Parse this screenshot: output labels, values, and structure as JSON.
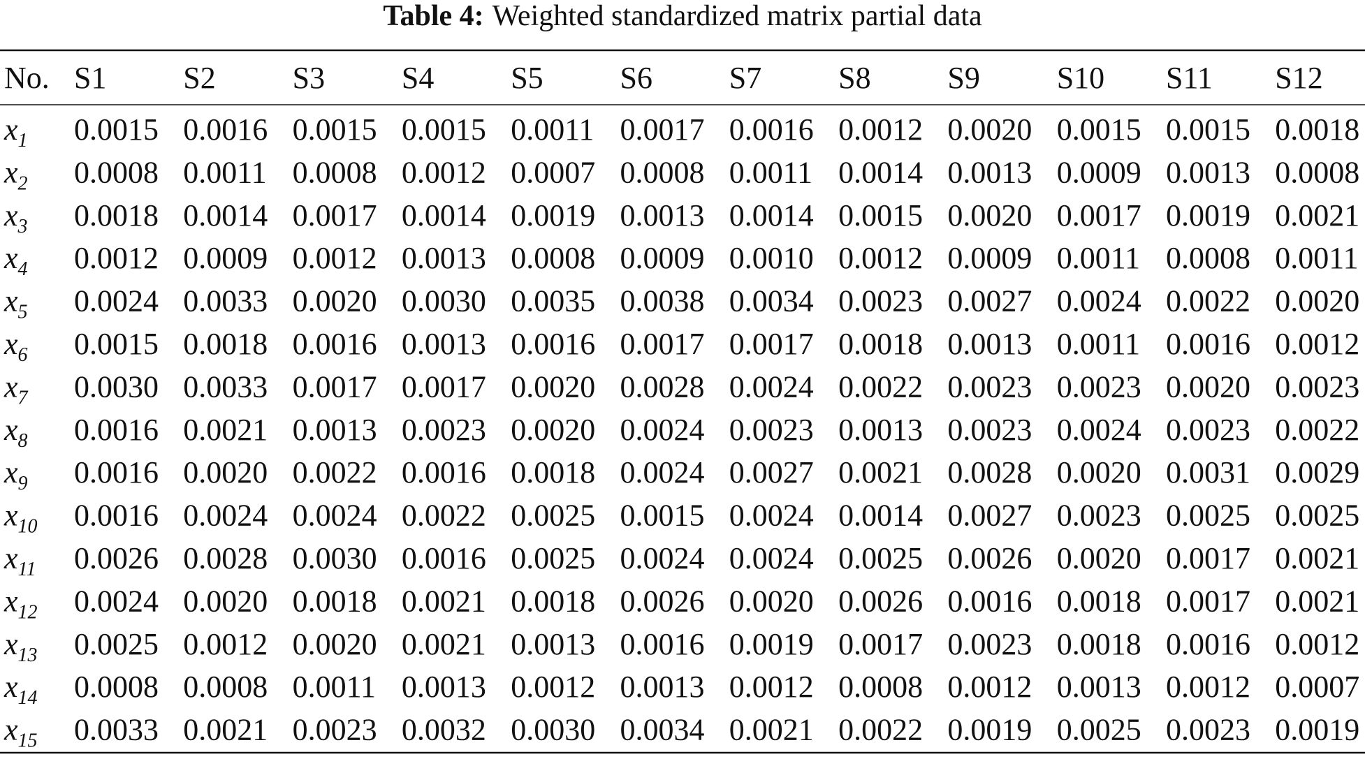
{
  "table": {
    "caption_label": "Table 4:",
    "caption_text": "Weighted standardized matrix partial data",
    "header": [
      "No.",
      "S1",
      "S2",
      "S3",
      "S4",
      "S5",
      "S6",
      "S7",
      "S8",
      "S9",
      "S10",
      "S11",
      "S12"
    ],
    "rows": [
      {
        "var": "x",
        "sub": "1",
        "cells": [
          "0.0015",
          "0.0016",
          "0.0015",
          "0.0015",
          "0.0011",
          "0.0017",
          "0.0016",
          "0.0012",
          "0.0020",
          "0.0015",
          "0.0015",
          "0.0018"
        ]
      },
      {
        "var": "x",
        "sub": "2",
        "cells": [
          "0.0008",
          "0.0011",
          "0.0008",
          "0.0012",
          "0.0007",
          "0.0008",
          "0.0011",
          "0.0014",
          "0.0013",
          "0.0009",
          "0.0013",
          "0.0008"
        ]
      },
      {
        "var": "x",
        "sub": "3",
        "cells": [
          "0.0018",
          "0.0014",
          "0.0017",
          "0.0014",
          "0.0019",
          "0.0013",
          "0.0014",
          "0.0015",
          "0.0020",
          "0.0017",
          "0.0019",
          "0.0021"
        ]
      },
      {
        "var": "x",
        "sub": "4",
        "cells": [
          "0.0012",
          "0.0009",
          "0.0012",
          "0.0013",
          "0.0008",
          "0.0009",
          "0.0010",
          "0.0012",
          "0.0009",
          "0.0011",
          "0.0008",
          "0.0011"
        ]
      },
      {
        "var": "x",
        "sub": "5",
        "cells": [
          "0.0024",
          "0.0033",
          "0.0020",
          "0.0030",
          "0.0035",
          "0.0038",
          "0.0034",
          "0.0023",
          "0.0027",
          "0.0024",
          "0.0022",
          "0.0020"
        ]
      },
      {
        "var": "x",
        "sub": "6",
        "cells": [
          "0.0015",
          "0.0018",
          "0.0016",
          "0.0013",
          "0.0016",
          "0.0017",
          "0.0017",
          "0.0018",
          "0.0013",
          "0.0011",
          "0.0016",
          "0.0012"
        ]
      },
      {
        "var": "x",
        "sub": "7",
        "cells": [
          "0.0030",
          "0.0033",
          "0.0017",
          "0.0017",
          "0.0020",
          "0.0028",
          "0.0024",
          "0.0022",
          "0.0023",
          "0.0023",
          "0.0020",
          "0.0023"
        ]
      },
      {
        "var": "x",
        "sub": "8",
        "cells": [
          "0.0016",
          "0.0021",
          "0.0013",
          "0.0023",
          "0.0020",
          "0.0024",
          "0.0023",
          "0.0013",
          "0.0023",
          "0.0024",
          "0.0023",
          "0.0022"
        ]
      },
      {
        "var": "x",
        "sub": "9",
        "cells": [
          "0.0016",
          "0.0020",
          "0.0022",
          "0.0016",
          "0.0018",
          "0.0024",
          "0.0027",
          "0.0021",
          "0.0028",
          "0.0020",
          "0.0031",
          "0.0029"
        ]
      },
      {
        "var": "x",
        "sub": "10",
        "cells": [
          "0.0016",
          "0.0024",
          "0.0024",
          "0.0022",
          "0.0025",
          "0.0015",
          "0.0024",
          "0.0014",
          "0.0027",
          "0.0023",
          "0.0025",
          "0.0025"
        ]
      },
      {
        "var": "x",
        "sub": "11",
        "cells": [
          "0.0026",
          "0.0028",
          "0.0030",
          "0.0016",
          "0.0025",
          "0.0024",
          "0.0024",
          "0.0025",
          "0.0026",
          "0.0020",
          "0.0017",
          "0.0021"
        ]
      },
      {
        "var": "x",
        "sub": "12",
        "cells": [
          "0.0024",
          "0.0020",
          "0.0018",
          "0.0021",
          "0.0018",
          "0.0026",
          "0.0020",
          "0.0026",
          "0.0016",
          "0.0018",
          "0.0017",
          "0.0021"
        ]
      },
      {
        "var": "x",
        "sub": "13",
        "cells": [
          "0.0025",
          "0.0012",
          "0.0020",
          "0.0021",
          "0.0013",
          "0.0016",
          "0.0019",
          "0.0017",
          "0.0023",
          "0.0018",
          "0.0016",
          "0.0012"
        ]
      },
      {
        "var": "x",
        "sub": "14",
        "cells": [
          "0.0008",
          "0.0008",
          "0.0011",
          "0.0013",
          "0.0012",
          "0.0013",
          "0.0012",
          "0.0008",
          "0.0012",
          "0.0013",
          "0.0012",
          "0.0007"
        ]
      },
      {
        "var": "x",
        "sub": "15",
        "cells": [
          "0.0033",
          "0.0021",
          "0.0023",
          "0.0032",
          "0.0030",
          "0.0034",
          "0.0021",
          "0.0022",
          "0.0019",
          "0.0025",
          "0.0023",
          "0.0019"
        ]
      }
    ]
  }
}
